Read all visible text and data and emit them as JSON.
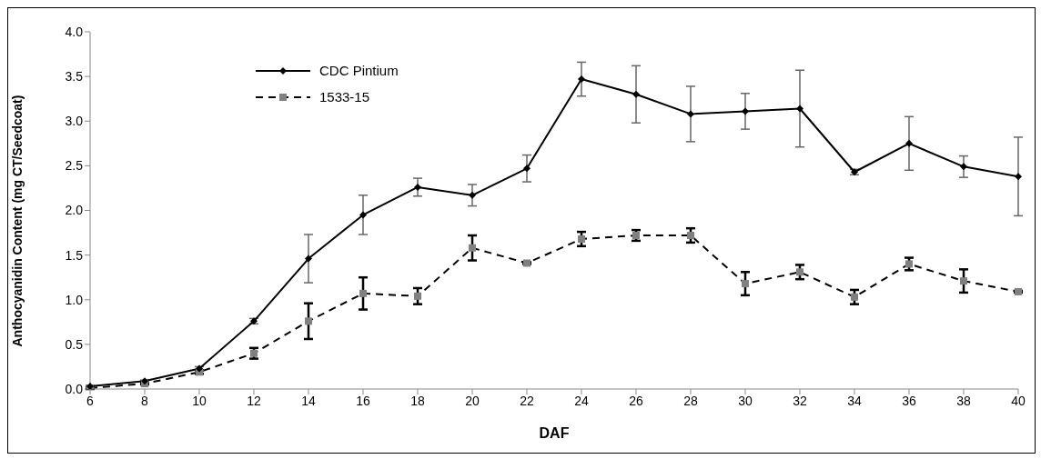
{
  "chart_data": {
    "type": "line",
    "xlabel": "DAF",
    "ylabel": "Anthocyanidin Content (mg CT/Seedcoat)",
    "categories": [
      "6",
      "8",
      "10",
      "12",
      "14",
      "16",
      "18",
      "20",
      "22",
      "24",
      "26",
      "28",
      "30",
      "32",
      "34",
      "36",
      "38",
      "40"
    ],
    "series": [
      {
        "name": "CDC Pintium",
        "color": "#000000",
        "marker": "diamond",
        "line_style": "solid",
        "values": [
          0.03,
          0.09,
          0.23,
          0.76,
          1.46,
          1.95,
          2.26,
          2.17,
          2.47,
          3.47,
          3.3,
          3.08,
          3.11,
          3.14,
          2.43,
          2.75,
          2.49,
          2.38
        ],
        "errors": [
          0.01,
          0.01,
          0.02,
          0.03,
          0.27,
          0.22,
          0.1,
          0.12,
          0.15,
          0.19,
          0.32,
          0.31,
          0.2,
          0.43,
          0.03,
          0.3,
          0.12,
          0.44
        ]
      },
      {
        "name": "1533-15",
        "color": "#808080",
        "marker": "square",
        "line_style": "dashed",
        "values": [
          0.01,
          0.06,
          0.19,
          0.4,
          0.76,
          1.07,
          1.04,
          1.58,
          1.41,
          1.68,
          1.72,
          1.72,
          1.18,
          1.31,
          1.03,
          1.4,
          1.21,
          1.09
        ],
        "errors": [
          0.01,
          0.01,
          0.02,
          0.06,
          0.2,
          0.18,
          0.09,
          0.14,
          0.01,
          0.08,
          0.06,
          0.08,
          0.13,
          0.08,
          0.08,
          0.07,
          0.13,
          0.01
        ]
      }
    ],
    "ylim": [
      0,
      4
    ],
    "yticks": [
      {
        "value": 0,
        "label": "0.0"
      },
      0.5,
      {
        "value": 1,
        "label": "1.0"
      },
      1.5,
      {
        "value": 2,
        "label": "2.0"
      },
      2.5,
      {
        "value": 3,
        "label": "3.0"
      },
      3.5,
      {
        "value": 4,
        "label": "4.0"
      }
    ],
    "legend": "top left"
  }
}
